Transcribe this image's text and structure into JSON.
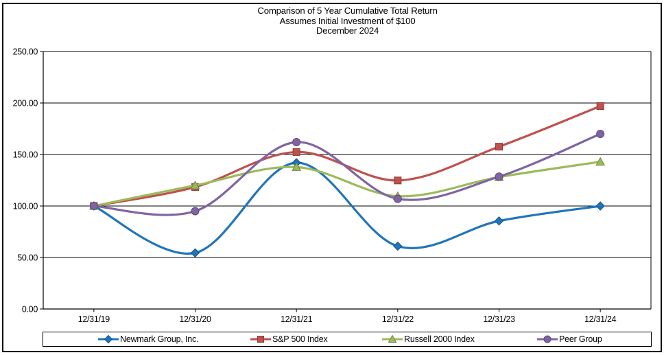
{
  "title": {
    "line1": "Comparison of 5 Year Cumulative Total Return",
    "line2": "Assumes Initial Investment of $100",
    "line3": "December 2024"
  },
  "chart_data": {
    "type": "line",
    "smoothed": true,
    "categories": [
      "12/31/19",
      "12/31/20",
      "12/31/21",
      "12/31/22",
      "12/31/23",
      "12/31/24"
    ],
    "series": [
      {
        "name": "Newmark Group, Inc.",
        "color": "#1F75BB",
        "marker": "diamond",
        "values": [
          100.0,
          54.5,
          142.0,
          61.0,
          85.5,
          100.0
        ]
      },
      {
        "name": "S&P 500 Index",
        "color": "#C0504D",
        "marker": "square",
        "values": [
          100.0,
          118.4,
          152.39,
          124.79,
          157.59,
          197.02
        ]
      },
      {
        "name": "Russell 2000 Index",
        "color": "#9BBB59",
        "marker": "triangle",
        "values": [
          100.0,
          119.96,
          137.74,
          109.57,
          128.1,
          142.93
        ]
      },
      {
        "name": "Peer Group",
        "color": "#8064A2",
        "marker": "circle",
        "values": [
          100.0,
          95.0,
          162.0,
          107.0,
          128.5,
          170.0
        ]
      }
    ],
    "ylim": [
      0,
      250
    ],
    "y_tick_step": 50,
    "y_tick_decimals": 2,
    "y_tick_labels": [
      "0.00",
      "50.00",
      "100.00",
      "150.00",
      "200.00",
      "250.00"
    ],
    "grid": true,
    "legend_position": "bottom",
    "axis_color": "#000000",
    "background": "#FFFFFF"
  }
}
